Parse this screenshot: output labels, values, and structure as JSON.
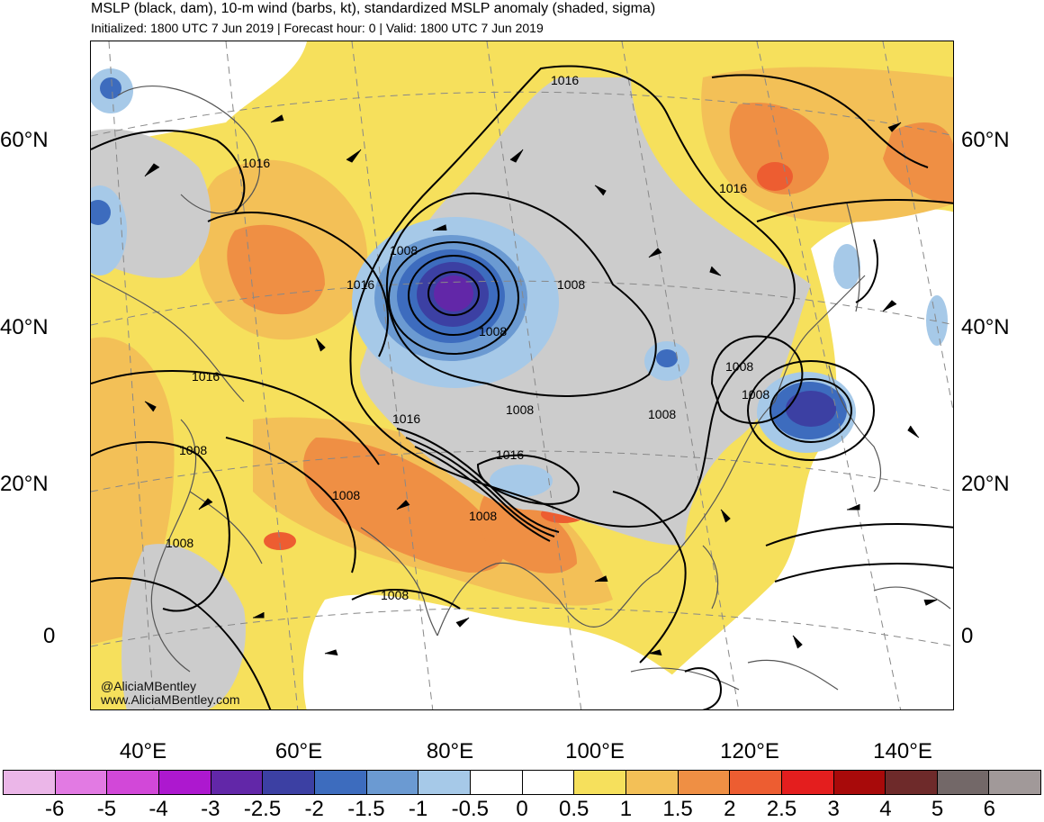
{
  "header": {
    "title": "MSLP (black, dam), 10-m wind (barbs, kt), standardized MSLP anomaly (shaded, sigma)",
    "subtitle": "Initialized: 1800 UTC 7 Jun 2019 | Forecast hour: 0 | Valid: 1800 UTC 7 Jun 2019"
  },
  "map": {
    "lat_labels": [
      "60°N",
      "40°N",
      "20°N",
      "0"
    ],
    "lon_labels": [
      "40°E",
      "60°E",
      "80°E",
      "100°E",
      "120°E",
      "140°E"
    ],
    "contour_labels": [
      "1016",
      "1016",
      "1016",
      "1016",
      "1016",
      "1016",
      "1016",
      "1008",
      "1008",
      "1008",
      "1008",
      "1008",
      "1008",
      "1008",
      "1008",
      "1008",
      "1008",
      "1008"
    ],
    "credit": {
      "handle": "@AliciaMBentley",
      "site": "www.AliciaMBentley.com"
    },
    "colors": {
      "land_outline": "#555555",
      "contour": "#000000",
      "grid": "#888888"
    }
  },
  "colorbar": {
    "labels": [
      "-6",
      "-5",
      "-4",
      "-3",
      "-2.5",
      "-2",
      "-1.5",
      "-1",
      "-0.5",
      "0",
      "0.5",
      "1",
      "1.5",
      "2",
      "2.5",
      "3",
      "4",
      "5",
      "6"
    ],
    "colors": [
      "#ebb6e8",
      "#e27ae3",
      "#d248d8",
      "#ad18cf",
      "#6227a8",
      "#3c40a3",
      "#3d6cbe",
      "#6b9ad2",
      "#a6c9e8",
      "#ffffff",
      "#ffffff",
      "#f6e05c",
      "#f3c057",
      "#ef8f44",
      "#ed5d31",
      "#e41e1e",
      "#a80a0a",
      "#6e2a2a",
      "#736868",
      "#a19999"
    ]
  }
}
